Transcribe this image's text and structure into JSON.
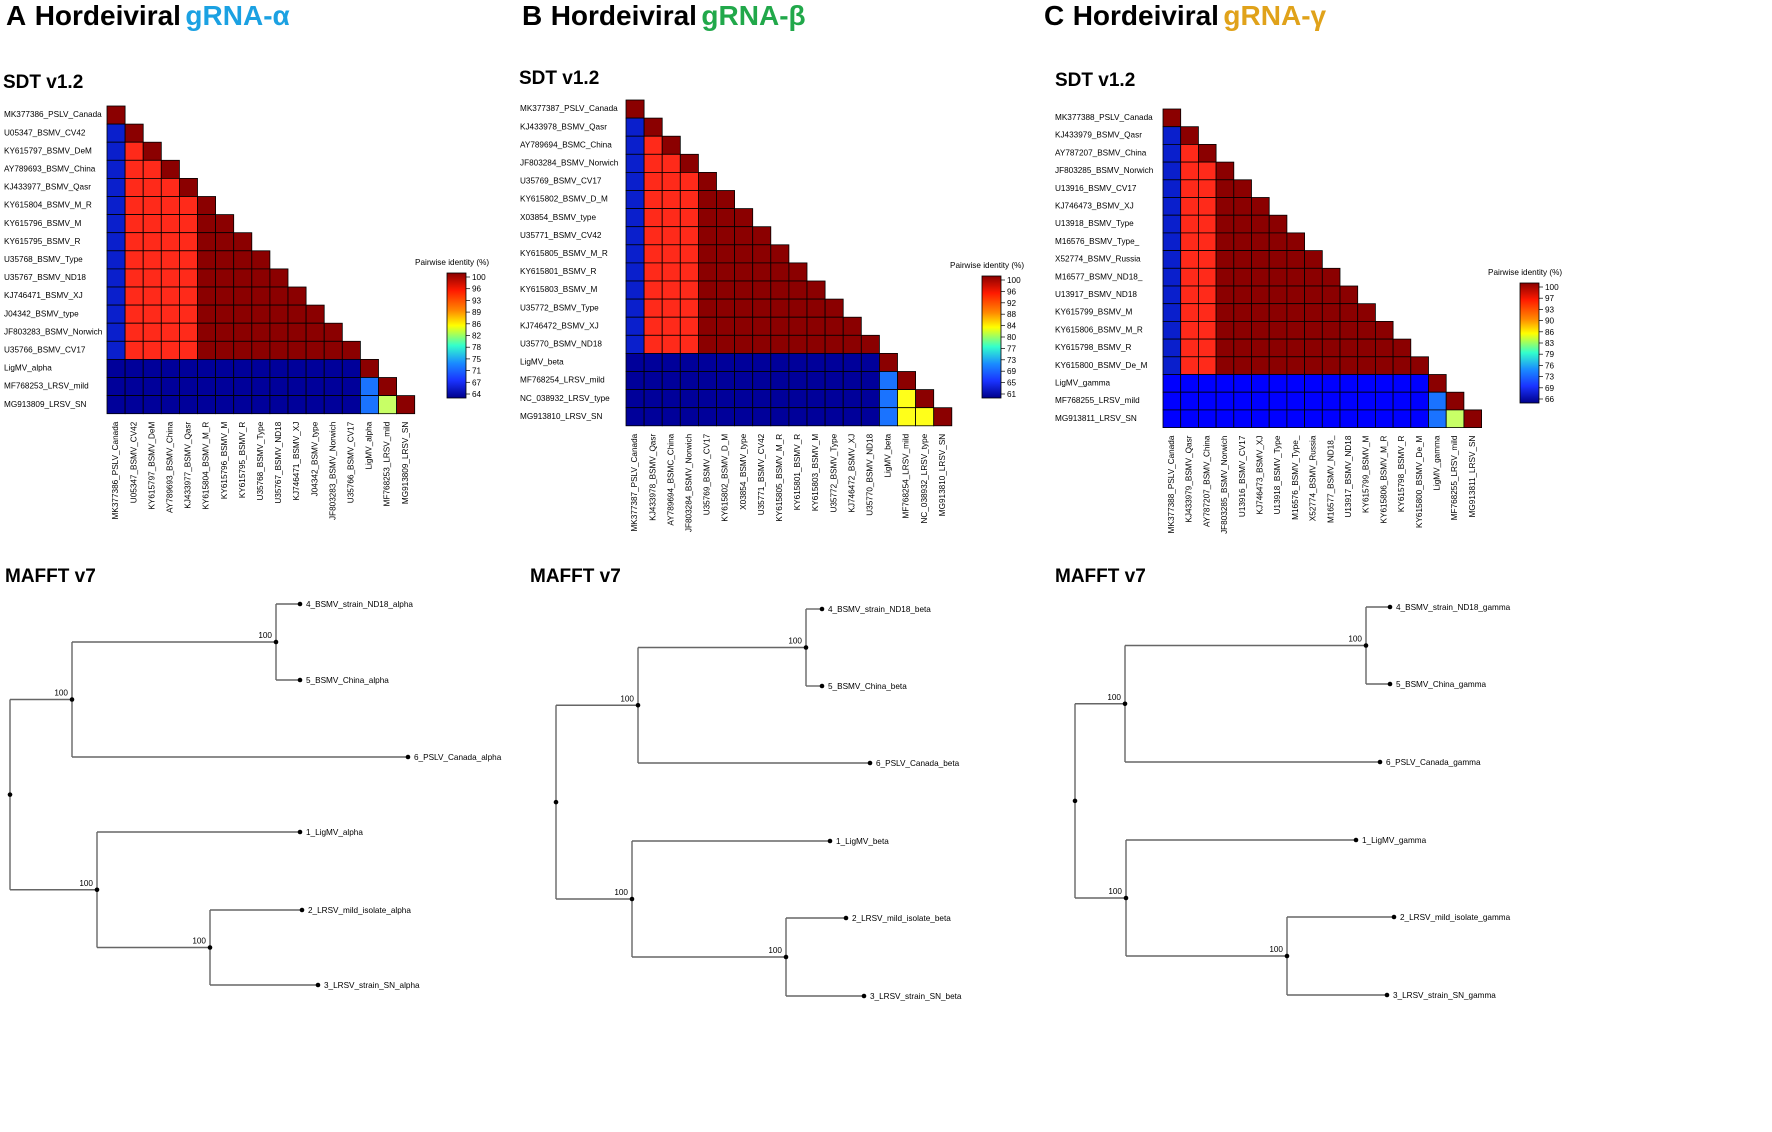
{
  "figure": {
    "section_labels": {
      "matrix": "SDT v1.2",
      "tree": "MAFFT v7"
    },
    "legend_title": "Pairwise identity (%)",
    "colors": {
      "text": "#000000",
      "tree_line": "#666666",
      "cell_border": "#000000"
    },
    "heat_colors": {
      "vhigh": "#8b0000",
      "high": "#ff2a1a",
      "low": "#0a1fcc",
      "mid": "#1a73ff",
      "lime": "#c8ff66",
      "yellow": "#ffff1a",
      "blue": "#0000ff",
      "deep": "#00009a"
    }
  },
  "chart_data": [
    {
      "panel": "A",
      "title": "Hordeiviral",
      "gene": "gRNA-α",
      "gene_color": "#1ba1e2",
      "type": "heatmap",
      "labels": [
        "MK377386_PSLV_Canada",
        "U05347_BSMV_CV42",
        "KY615797_BSMV_DeM",
        "AY789693_BSMV_China",
        "KJ433977_BSMV_Qasr",
        "KY615804_BSMV_M_R",
        "KY615796_BSMV_M",
        "KY615795_BSMV_R",
        "U35768_BSMV_Type",
        "U35767_BSMV_ND18",
        "KJ746471_BSMV_XJ",
        "J04342_BSMV_type",
        "JF803283_BSMV_Norwich",
        "U35766_BSMV_CV17",
        "LigMV_alpha",
        "MF768253_LRSV_mild",
        "MG913809_LRSV_SN"
      ],
      "matrix": [
        [
          "vhigh"
        ],
        [
          "low",
          "vhigh"
        ],
        [
          "low",
          "high",
          "vhigh"
        ],
        [
          "low",
          "high",
          "high",
          "vhigh"
        ],
        [
          "low",
          "high",
          "high",
          "high",
          "vhigh"
        ],
        [
          "low",
          "high",
          "high",
          "high",
          "high",
          "vhigh"
        ],
        [
          "low",
          "high",
          "high",
          "high",
          "high",
          "vhigh",
          "vhigh"
        ],
        [
          "low",
          "high",
          "high",
          "high",
          "high",
          "vhigh",
          "vhigh",
          "vhigh"
        ],
        [
          "low",
          "high",
          "high",
          "high",
          "high",
          "vhigh",
          "vhigh",
          "vhigh",
          "vhigh"
        ],
        [
          "low",
          "high",
          "high",
          "high",
          "high",
          "vhigh",
          "vhigh",
          "vhigh",
          "vhigh",
          "vhigh"
        ],
        [
          "low",
          "high",
          "high",
          "high",
          "high",
          "vhigh",
          "vhigh",
          "vhigh",
          "vhigh",
          "vhigh",
          "vhigh"
        ],
        [
          "low",
          "high",
          "high",
          "high",
          "high",
          "vhigh",
          "vhigh",
          "vhigh",
          "vhigh",
          "vhigh",
          "vhigh",
          "vhigh"
        ],
        [
          "low",
          "high",
          "high",
          "high",
          "high",
          "vhigh",
          "vhigh",
          "vhigh",
          "vhigh",
          "vhigh",
          "vhigh",
          "vhigh",
          "vhigh"
        ],
        [
          "low",
          "high",
          "high",
          "high",
          "high",
          "vhigh",
          "vhigh",
          "vhigh",
          "vhigh",
          "vhigh",
          "vhigh",
          "vhigh",
          "vhigh",
          "vhigh"
        ],
        [
          "deep",
          "deep",
          "deep",
          "deep",
          "deep",
          "deep",
          "deep",
          "deep",
          "deep",
          "deep",
          "deep",
          "deep",
          "deep",
          "deep",
          "vhigh"
        ],
        [
          "deep",
          "deep",
          "deep",
          "deep",
          "deep",
          "deep",
          "deep",
          "deep",
          "deep",
          "deep",
          "deep",
          "deep",
          "deep",
          "deep",
          "mid",
          "vhigh"
        ],
        [
          "deep",
          "deep",
          "deep",
          "deep",
          "deep",
          "deep",
          "deep",
          "deep",
          "deep",
          "deep",
          "deep",
          "deep",
          "deep",
          "deep",
          "mid",
          "lime",
          "vhigh"
        ]
      ],
      "legend_ticks": [
        "100",
        "96",
        "93",
        "89",
        "86",
        "82",
        "78",
        "75",
        "71",
        "67",
        "64"
      ],
      "tree": {
        "leaves": [
          "4_BSMV_strain_ND18_alpha",
          "5_BSMV_China_alpha",
          "6_PSLV_Canada_alpha",
          "1_LigMV_alpha",
          "2_LRSV_mild_isolate_alpha",
          "3_LRSV_strain_SN_alpha"
        ],
        "bootstrap": [
          "100",
          "100",
          "100",
          "100"
        ]
      }
    },
    {
      "panel": "B",
      "title": "Hordeiviral",
      "gene": "gRNA-β",
      "gene_color": "#21a84a",
      "type": "heatmap",
      "labels": [
        "MK377387_PSLV_Canada",
        "KJ433978_BSMV_Qasr",
        "AY789694_BSMC_China",
        "JF803284_BSMV_Norwich",
        "U35769_BSMV_CV17",
        "KY615802_BSMV_D_M",
        "X03854_BSMV_type",
        "U35771_BSMV_CV42",
        "KY615805_BSMV_M_R",
        "KY615801_BSMV_R",
        "KY615803_BSMV_M",
        "U35772_BSMV_Type",
        "KJ746472_BSMV_XJ",
        "U35770_BSMV_ND18",
        "LigMV_beta",
        "MF768254_LRSV_mild",
        "NC_038932_LRSV_type",
        "MG913810_LRSV_SN"
      ],
      "matrix": [
        [
          "vhigh"
        ],
        [
          "low",
          "vhigh"
        ],
        [
          "low",
          "high",
          "vhigh"
        ],
        [
          "low",
          "high",
          "high",
          "vhigh"
        ],
        [
          "low",
          "high",
          "high",
          "high",
          "vhigh"
        ],
        [
          "low",
          "high",
          "high",
          "high",
          "vhigh",
          "vhigh"
        ],
        [
          "low",
          "high",
          "high",
          "high",
          "vhigh",
          "vhigh",
          "vhigh"
        ],
        [
          "low",
          "high",
          "high",
          "high",
          "vhigh",
          "vhigh",
          "vhigh",
          "vhigh"
        ],
        [
          "low",
          "high",
          "high",
          "high",
          "vhigh",
          "vhigh",
          "vhigh",
          "vhigh",
          "vhigh"
        ],
        [
          "low",
          "high",
          "high",
          "high",
          "vhigh",
          "vhigh",
          "vhigh",
          "vhigh",
          "vhigh",
          "vhigh"
        ],
        [
          "low",
          "high",
          "high",
          "high",
          "vhigh",
          "vhigh",
          "vhigh",
          "vhigh",
          "vhigh",
          "vhigh",
          "vhigh"
        ],
        [
          "low",
          "high",
          "high",
          "high",
          "vhigh",
          "vhigh",
          "vhigh",
          "vhigh",
          "vhigh",
          "vhigh",
          "vhigh",
          "vhigh"
        ],
        [
          "low",
          "high",
          "high",
          "high",
          "vhigh",
          "vhigh",
          "vhigh",
          "vhigh",
          "vhigh",
          "vhigh",
          "vhigh",
          "vhigh",
          "vhigh"
        ],
        [
          "low",
          "high",
          "high",
          "high",
          "vhigh",
          "vhigh",
          "vhigh",
          "vhigh",
          "vhigh",
          "vhigh",
          "vhigh",
          "vhigh",
          "vhigh",
          "vhigh"
        ],
        [
          "deep",
          "deep",
          "deep",
          "deep",
          "deep",
          "deep",
          "deep",
          "deep",
          "deep",
          "deep",
          "deep",
          "deep",
          "deep",
          "deep",
          "vhigh"
        ],
        [
          "deep",
          "deep",
          "deep",
          "deep",
          "deep",
          "deep",
          "deep",
          "deep",
          "deep",
          "deep",
          "deep",
          "deep",
          "deep",
          "deep",
          "mid",
          "vhigh"
        ],
        [
          "deep",
          "deep",
          "deep",
          "deep",
          "deep",
          "deep",
          "deep",
          "deep",
          "deep",
          "deep",
          "deep",
          "deep",
          "deep",
          "deep",
          "mid",
          "yellow",
          "vhigh"
        ],
        [
          "deep",
          "deep",
          "deep",
          "deep",
          "deep",
          "deep",
          "deep",
          "deep",
          "deep",
          "deep",
          "deep",
          "deep",
          "deep",
          "deep",
          "mid",
          "yellow",
          "yellow",
          "vhigh"
        ]
      ],
      "legend_ticks": [
        "100",
        "96",
        "92",
        "88",
        "84",
        "80",
        "77",
        "73",
        "69",
        "65",
        "61"
      ],
      "tree": {
        "leaves": [
          "4_BSMV_strain_ND18_beta",
          "5_BSMV_China_beta",
          "6_PSLV_Canada_beta",
          "1_LigMV_beta",
          "2_LRSV_mild_isolate_beta",
          "3_LRSV_strain_SN_beta"
        ],
        "bootstrap": [
          "100",
          "100",
          "100",
          "100"
        ]
      }
    },
    {
      "panel": "C",
      "title": "Hordeiviral",
      "gene": "gRNA-γ",
      "gene_color": "#e0a21a",
      "type": "heatmap",
      "labels": [
        "MK377388_PSLV_Canada",
        "KJ433979_BSMV_Qasr",
        "AY787207_BSMV_China",
        "JF803285_BSMV_Norwich",
        "U13916_BSMV_CV17",
        "KJ746473_BSMV_XJ",
        "U13918_BSMV_Type",
        "M16576_BSMV_Type_",
        "X52774_BSMV_Russia",
        "M16577_BSMV_ND18_",
        "U13917_BSMV_ND18",
        "KY615799_BSMV_M",
        "KY615806_BSMV_M_R",
        "KY615798_BSMV_R",
        "KY615800_BSMV_De_M",
        "LigMV_gamma",
        "MF768255_LRSV_mild",
        "MG913811_LRSV_SN"
      ],
      "matrix": [
        [
          "vhigh"
        ],
        [
          "low",
          "vhigh"
        ],
        [
          "low",
          "high",
          "vhigh"
        ],
        [
          "low",
          "high",
          "high",
          "vhigh"
        ],
        [
          "low",
          "high",
          "high",
          "vhigh",
          "vhigh"
        ],
        [
          "low",
          "high",
          "high",
          "vhigh",
          "vhigh",
          "vhigh"
        ],
        [
          "low",
          "high",
          "high",
          "vhigh",
          "vhigh",
          "vhigh",
          "vhigh"
        ],
        [
          "low",
          "high",
          "high",
          "vhigh",
          "vhigh",
          "vhigh",
          "vhigh",
          "vhigh"
        ],
        [
          "low",
          "high",
          "high",
          "vhigh",
          "vhigh",
          "vhigh",
          "vhigh",
          "vhigh",
          "vhigh"
        ],
        [
          "low",
          "high",
          "high",
          "vhigh",
          "vhigh",
          "vhigh",
          "vhigh",
          "vhigh",
          "vhigh",
          "vhigh"
        ],
        [
          "low",
          "high",
          "high",
          "vhigh",
          "vhigh",
          "vhigh",
          "vhigh",
          "vhigh",
          "vhigh",
          "vhigh",
          "vhigh"
        ],
        [
          "low",
          "high",
          "high",
          "vhigh",
          "vhigh",
          "vhigh",
          "vhigh",
          "vhigh",
          "vhigh",
          "vhigh",
          "vhigh",
          "vhigh"
        ],
        [
          "low",
          "high",
          "high",
          "vhigh",
          "vhigh",
          "vhigh",
          "vhigh",
          "vhigh",
          "vhigh",
          "vhigh",
          "vhigh",
          "vhigh",
          "vhigh"
        ],
        [
          "low",
          "high",
          "high",
          "vhigh",
          "vhigh",
          "vhigh",
          "vhigh",
          "vhigh",
          "vhigh",
          "vhigh",
          "vhigh",
          "vhigh",
          "vhigh",
          "vhigh"
        ],
        [
          "low",
          "high",
          "high",
          "vhigh",
          "vhigh",
          "vhigh",
          "vhigh",
          "vhigh",
          "vhigh",
          "vhigh",
          "vhigh",
          "vhigh",
          "vhigh",
          "vhigh",
          "vhigh"
        ],
        [
          "blue",
          "blue",
          "blue",
          "blue",
          "blue",
          "blue",
          "blue",
          "blue",
          "blue",
          "blue",
          "blue",
          "blue",
          "blue",
          "blue",
          "blue",
          "vhigh"
        ],
        [
          "blue",
          "blue",
          "blue",
          "blue",
          "blue",
          "blue",
          "blue",
          "blue",
          "blue",
          "blue",
          "blue",
          "blue",
          "blue",
          "blue",
          "blue",
          "mid",
          "vhigh"
        ],
        [
          "blue",
          "blue",
          "blue",
          "blue",
          "blue",
          "blue",
          "blue",
          "blue",
          "blue",
          "blue",
          "blue",
          "blue",
          "blue",
          "blue",
          "blue",
          "mid",
          "lime",
          "vhigh"
        ]
      ],
      "legend_ticks": [
        "100",
        "97",
        "93",
        "90",
        "86",
        "83",
        "79",
        "76",
        "73",
        "69",
        "66"
      ],
      "tree": {
        "leaves": [
          "4_BSMV_strain_ND18_gamma",
          "5_BSMV_China_gamma",
          "6_PSLV_Canada_gamma",
          "1_LigMV_gamma",
          "2_LRSV_mild_isolate_gamma",
          "3_LRSV_strain_SN_gamma"
        ],
        "bootstrap": [
          "100",
          "100",
          "100",
          "100"
        ]
      }
    }
  ]
}
